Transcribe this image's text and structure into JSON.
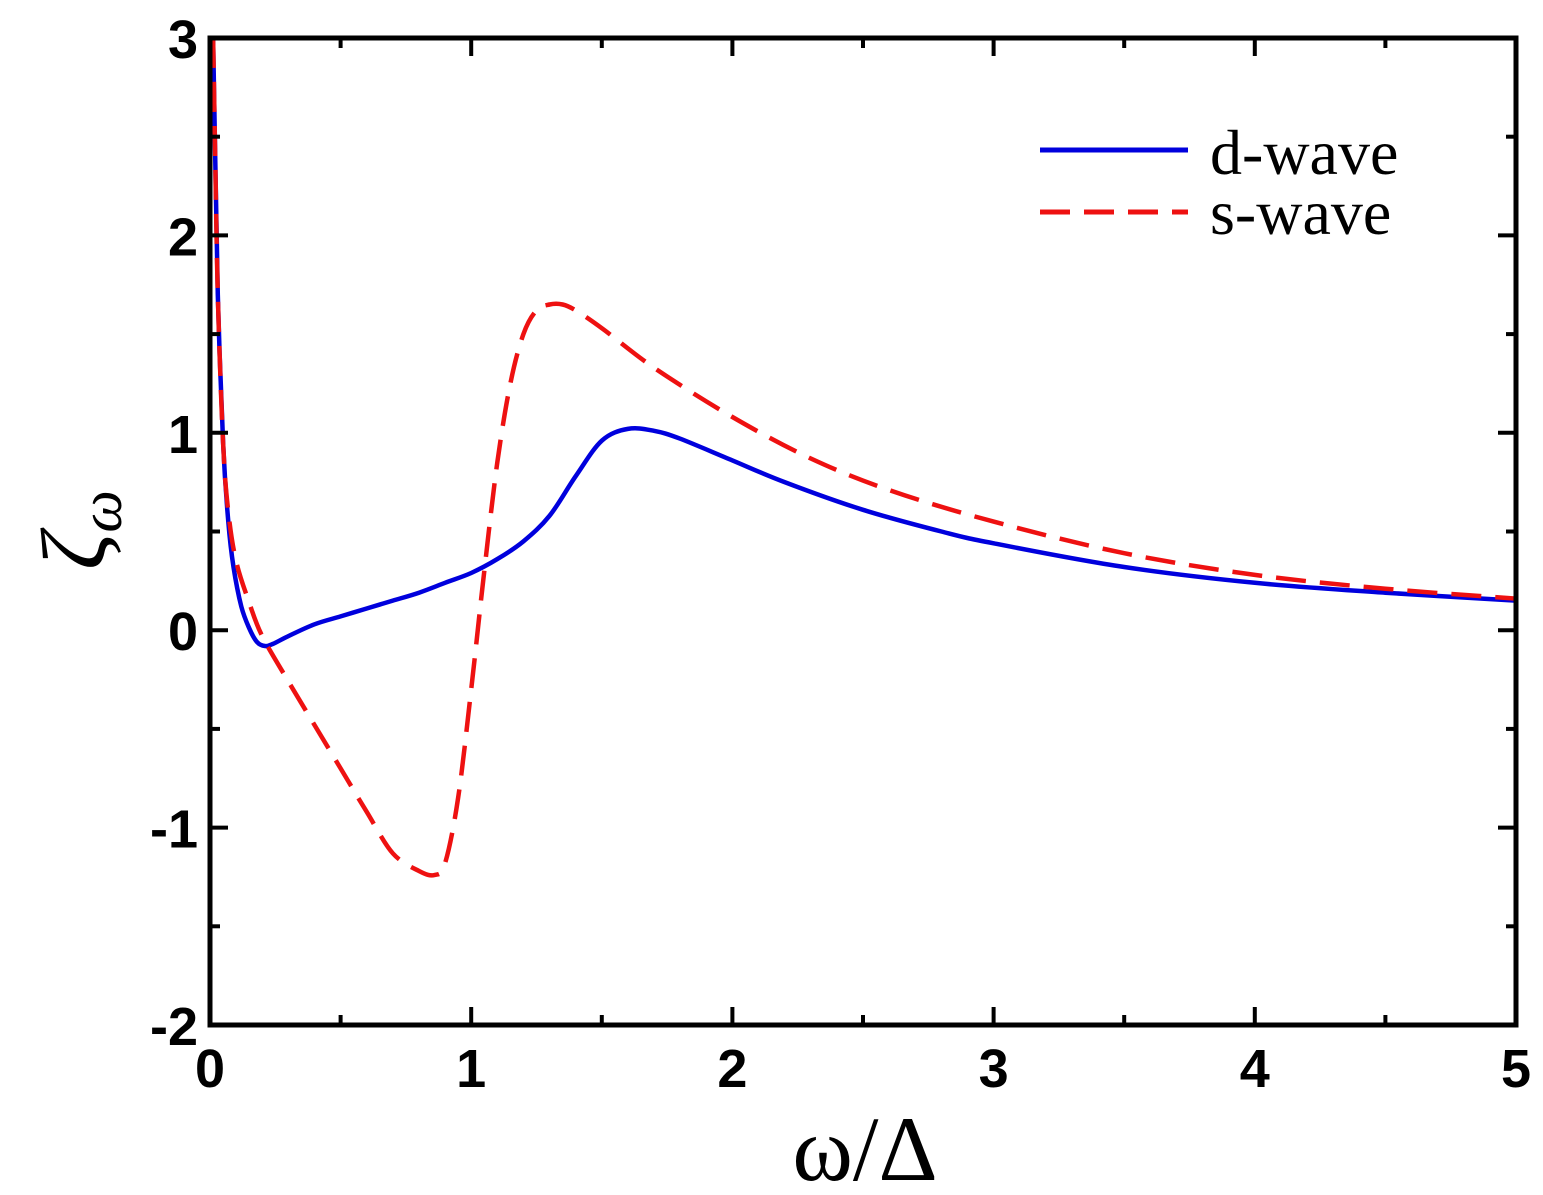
{
  "chart_data": {
    "type": "line",
    "title": "",
    "xlabel": "ω/Δ",
    "ylabel": "ζ",
    "ylabel_subscript": "ω",
    "xlim": [
      0,
      5
    ],
    "ylim": [
      -2,
      3
    ],
    "xticks": [
      "0",
      "1",
      "2",
      "3",
      "4",
      "5"
    ],
    "yticks": [
      "-2",
      "-1",
      "0",
      "1",
      "2",
      "3"
    ],
    "grid": false,
    "legend_position": "top-right",
    "series": [
      {
        "name": "d-wave",
        "color": "#0000dd",
        "style": "solid",
        "x": [
          0.012,
          0.02,
          0.03,
          0.05,
          0.07,
          0.09,
          0.12,
          0.15,
          0.18,
          0.21,
          0.24,
          0.3,
          0.4,
          0.5,
          0.6,
          0.7,
          0.8,
          0.9,
          1.0,
          1.1,
          1.2,
          1.3,
          1.4,
          1.5,
          1.6,
          1.7,
          1.8,
          2.0,
          2.2,
          2.5,
          2.8,
          3.0,
          3.5,
          4.0,
          4.5,
          5.0
        ],
        "values": [
          3.0,
          2.4,
          1.7,
          0.95,
          0.55,
          0.32,
          0.12,
          0.01,
          -0.06,
          -0.08,
          -0.07,
          -0.03,
          0.03,
          0.07,
          0.11,
          0.15,
          0.19,
          0.24,
          0.29,
          0.36,
          0.45,
          0.58,
          0.78,
          0.96,
          1.02,
          1.01,
          0.97,
          0.86,
          0.75,
          0.61,
          0.5,
          0.44,
          0.32,
          0.24,
          0.19,
          0.15
        ]
      },
      {
        "name": "s-wave",
        "color": "#ee1111",
        "style": "dashed",
        "x": [
          0.012,
          0.02,
          0.03,
          0.05,
          0.07,
          0.1,
          0.15,
          0.2,
          0.3,
          0.4,
          0.5,
          0.6,
          0.7,
          0.8,
          0.86,
          0.9,
          0.95,
          1.0,
          1.05,
          1.1,
          1.15,
          1.2,
          1.25,
          1.3,
          1.35,
          1.4,
          1.5,
          1.7,
          2.0,
          2.3,
          2.6,
          3.0,
          3.5,
          4.0,
          4.5,
          5.0
        ],
        "values": [
          3.0,
          2.4,
          1.7,
          0.95,
          0.6,
          0.35,
          0.14,
          -0.03,
          -0.26,
          -0.48,
          -0.7,
          -0.92,
          -1.13,
          -1.22,
          -1.24,
          -1.18,
          -0.85,
          -0.3,
          0.3,
          0.85,
          1.25,
          1.5,
          1.62,
          1.65,
          1.65,
          1.62,
          1.53,
          1.33,
          1.08,
          0.87,
          0.71,
          0.55,
          0.39,
          0.28,
          0.21,
          0.16
        ]
      }
    ]
  }
}
